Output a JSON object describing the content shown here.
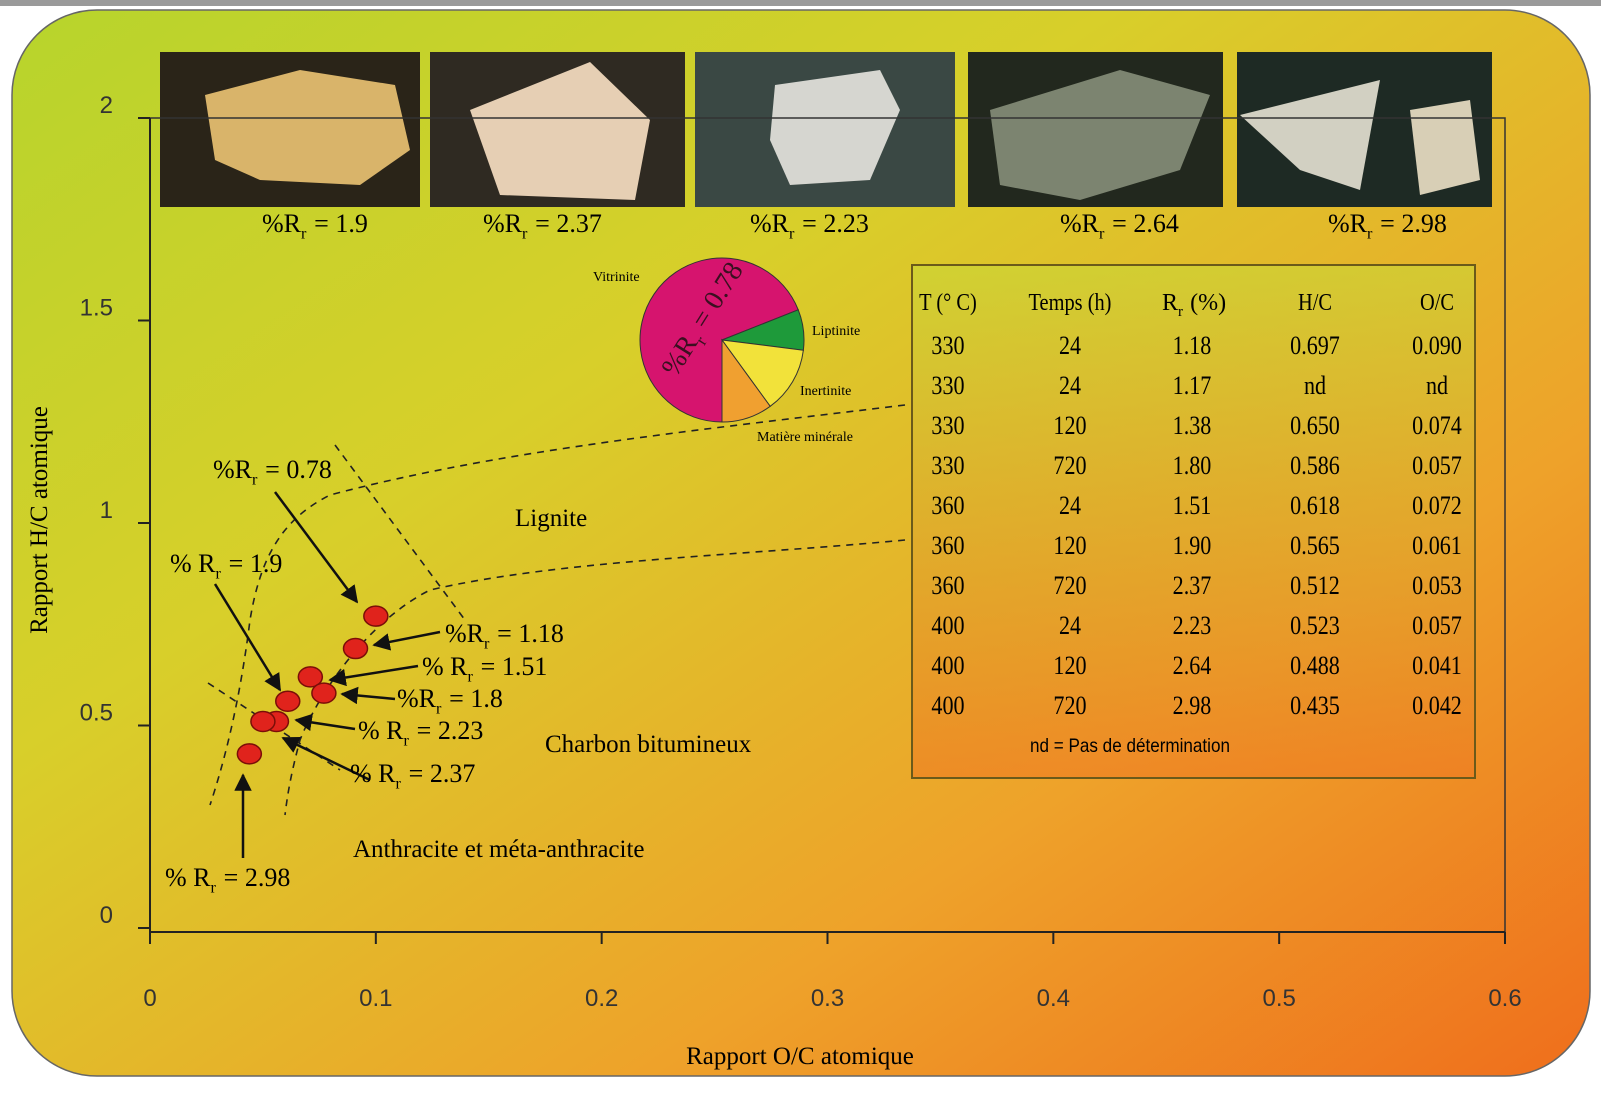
{
  "chart_data": [
    {
      "type": "scatter",
      "x_label": "Rapport O/C atomique",
      "y_label": "Rapport H/C atomique",
      "x": [
        0.1,
        0.091,
        0.071,
        0.077,
        0.061,
        0.056,
        0.05,
        0.044
      ],
      "values": [
        0.77,
        0.69,
        0.62,
        0.58,
        0.56,
        0.51,
        0.51,
        0.43
      ],
      "color": "#e0231c",
      "xlim": [
        0,
        0.6
      ],
      "xticks": [
        0,
        0.1,
        0.2,
        0.3,
        0.4,
        0.5,
        0.6
      ],
      "ylim": [
        0,
        2
      ],
      "yticks": [
        0,
        0.5,
        1,
        1.5,
        2
      ],
      "annotations": [
        [
          "%R",
          "r",
          "= 0.78"
        ],
        [
          "% R",
          "r",
          "= 1.9"
        ],
        [
          "%R",
          "r",
          "= 1.18"
        ],
        [
          "% R",
          "r",
          "= 1.51"
        ],
        [
          "%R",
          "r",
          "= 1.8"
        ],
        [
          "% R",
          "r",
          "= 2.23"
        ],
        [
          "% R",
          "r",
          "= 2.37"
        ],
        [
          "% R",
          "r",
          "= 2.98"
        ]
      ],
      "regions": [
        "Lignite",
        "Charbon bitumineux",
        "Anthracite et méta-anthracite"
      ]
    },
    {
      "type": "pie",
      "categories": [
        "Vitrinite",
        "Liptinite",
        "Inertinite",
        "Matière minérale"
      ],
      "values": [
        69,
        8,
        13,
        10
      ],
      "colors": [
        "#d6146e",
        "#1e9a3a",
        "#f2e23a",
        "#f0a030"
      ],
      "annotation": [
        "%R",
        "r",
        "= 0.78"
      ]
    }
  ],
  "photos": {
    "captions": [
      [
        "%R",
        "r",
        "= 1.9"
      ],
      [
        "%R",
        "r",
        "= 2.37"
      ],
      [
        "%R",
        "r",
        "= 2.23"
      ],
      [
        "%R",
        "r",
        "= 2.64"
      ],
      [
        "%R",
        "r",
        "= 2.98"
      ]
    ]
  },
  "table": {
    "header": [
      "T (° C)",
      "Temps (h)",
      [
        "R",
        "r",
        "(%)"
      ],
      "H/C",
      "O/C"
    ],
    "rows": [
      [
        "330",
        "24",
        "1.18",
        "0.697",
        "0.090"
      ],
      [
        "330",
        "24",
        "1.17",
        "nd",
        "nd"
      ],
      [
        "330",
        "120",
        "1.38",
        "0.650",
        "0.074"
      ],
      [
        "330",
        "720",
        "1.80",
        "0.586",
        "0.057"
      ],
      [
        "360",
        "24",
        "1.51",
        "0.618",
        "0.072"
      ],
      [
        "360",
        "120",
        "1.90",
        "0.565",
        "0.061"
      ],
      [
        "360",
        "720",
        "2.37",
        "0.512",
        "0.053"
      ],
      [
        "400",
        "24",
        "2.23",
        "0.523",
        "0.057"
      ],
      [
        "400",
        "120",
        "2.64",
        "0.488",
        "0.041"
      ],
      [
        "400",
        "720",
        "2.98",
        "0.435",
        "0.042"
      ]
    ],
    "note": "nd = Pas de détermination"
  }
}
